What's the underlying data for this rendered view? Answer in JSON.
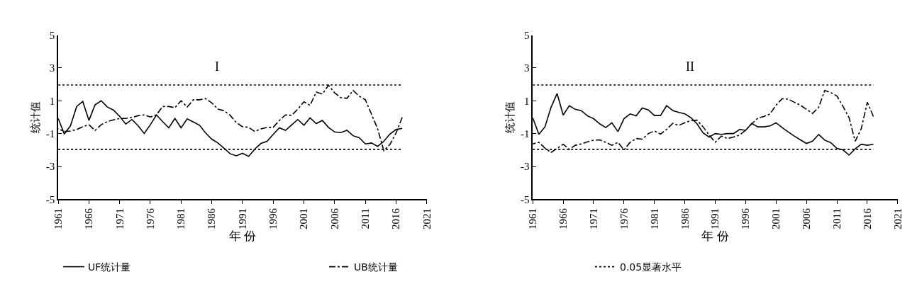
{
  "chart_data": [
    {
      "type": "line",
      "title": "I",
      "xlabel": "年 份",
      "ylabel": "统计值",
      "xlim": [
        1961,
        2021
      ],
      "xticks": [
        1961,
        1966,
        1971,
        1976,
        1981,
        1986,
        1991,
        1996,
        2001,
        2006,
        2011,
        2016,
        2021
      ],
      "ylim": [
        -5,
        5
      ],
      "yticks": [
        -5,
        -3,
        -1,
        1,
        3,
        5
      ],
      "legend": "bottom",
      "marker": "none",
      "x": [
        1961,
        1962,
        1963,
        1964,
        1965,
        1966,
        1967,
        1968,
        1969,
        1970,
        1971,
        1972,
        1973,
        1974,
        1975,
        1976,
        1977,
        1978,
        1979,
        1980,
        1981,
        1982,
        1983,
        1984,
        1985,
        1986,
        1987,
        1988,
        1989,
        1990,
        1991,
        1992,
        1993,
        1994,
        1995,
        1996,
        1997,
        1998,
        1999,
        2000,
        2001,
        2002,
        2003,
        2004,
        2005,
        2006,
        2007,
        2008,
        2009,
        2010,
        2011,
        2012,
        2013,
        2014,
        2015,
        2016,
        2017
      ],
      "series": [
        {
          "name": "UF统计量",
          "color": "#000000",
          "line_style": "solid",
          "values": [
            -0.08,
            -1.03,
            -0.52,
            0.65,
            0.96,
            -0.2,
            0.75,
            1.0,
            0.62,
            0.43,
            0.05,
            -0.42,
            -0.14,
            -0.52,
            -0.99,
            -0.46,
            0.14,
            -0.27,
            -0.65,
            -0.08,
            -0.65,
            -0.1,
            -0.29,
            -0.49,
            -0.96,
            -1.34,
            -1.57,
            -1.89,
            -2.23,
            -2.35,
            -2.2,
            -2.39,
            -1.94,
            -1.6,
            -1.47,
            -1.05,
            -0.65,
            -0.8,
            -0.47,
            -0.14,
            -0.49,
            -0.04,
            -0.39,
            -0.2,
            -0.62,
            -0.9,
            -0.94,
            -0.8,
            -1.13,
            -1.25,
            -1.63,
            -1.57,
            -1.78,
            -1.47,
            -1.03,
            -0.75,
            -0.68
          ]
        },
        {
          "name": "UB统计量",
          "color": "#000000",
          "line_style": "dashdot",
          "values": [
            -0.7,
            -0.87,
            -0.84,
            -0.75,
            -0.58,
            -0.46,
            -0.81,
            -0.46,
            -0.27,
            -0.16,
            -0.08,
            -0.08,
            -0.01,
            0.09,
            0.14,
            0.01,
            0.14,
            0.65,
            0.65,
            0.58,
            1.0,
            0.62,
            1.06,
            1.06,
            1.13,
            0.87,
            0.49,
            0.39,
            0.11,
            -0.33,
            -0.58,
            -0.62,
            -0.87,
            -0.71,
            -0.62,
            -0.62,
            -0.2,
            0.14,
            0.11,
            0.49,
            0.94,
            0.72,
            1.53,
            1.41,
            1.95,
            1.48,
            1.19,
            1.15,
            1.63,
            1.28,
            1.06,
            0.18,
            -0.71,
            -2.04,
            -1.66,
            -0.96,
            -0.01
          ]
        }
      ],
      "ref_lines": [
        {
          "axis": "y",
          "value": 1.96,
          "label": "0.05显著水平",
          "color": "#000000",
          "line_style": "dotted"
        },
        {
          "axis": "y",
          "value": -1.96,
          "color": "#000000",
          "line_style": "dotted"
        }
      ]
    },
    {
      "type": "line",
      "title": "II",
      "xlabel": "年 份",
      "ylabel": "统计值",
      "xlim": [
        1961,
        2021
      ],
      "xticks": [
        1961,
        1966,
        1971,
        1976,
        1981,
        1986,
        1991,
        1996,
        2001,
        2006,
        2011,
        2016,
        2021
      ],
      "ylim": [
        -5,
        5
      ],
      "yticks": [
        -5,
        -3,
        -1,
        1,
        3,
        5
      ],
      "marker": "none",
      "x": [
        1961,
        1962,
        1963,
        1964,
        1965,
        1966,
        1967,
        1968,
        1969,
        1970,
        1971,
        1972,
        1973,
        1974,
        1975,
        1976,
        1977,
        1978,
        1979,
        1980,
        1981,
        1982,
        1983,
        1984,
        1985,
        1986,
        1987,
        1988,
        1989,
        1990,
        1991,
        1992,
        1993,
        1994,
        1995,
        1996,
        1997,
        1998,
        1999,
        2000,
        2001,
        2002,
        2003,
        2004,
        2005,
        2006,
        2007,
        2008,
        2009,
        2010,
        2011,
        2012,
        2013,
        2014,
        2015,
        2016,
        2017
      ],
      "series": [
        {
          "color": "#000000",
          "line_style": "solid",
          "values": [
            -0.03,
            -1.05,
            -0.59,
            0.6,
            1.44,
            0.13,
            0.7,
            0.48,
            0.39,
            0.08,
            -0.09,
            -0.4,
            -0.63,
            -0.34,
            -0.88,
            -0.09,
            0.2,
            0.08,
            0.56,
            0.44,
            0.1,
            0.1,
            0.7,
            0.41,
            0.29,
            0.2,
            -0.03,
            -0.4,
            -0.96,
            -1.21,
            -1.0,
            -1.05,
            -1.0,
            -1.0,
            -0.75,
            -0.8,
            -0.38,
            -0.59,
            -0.59,
            -0.53,
            -0.34,
            -0.63,
            -0.9,
            -1.15,
            -1.38,
            -1.6,
            -1.46,
            -1.05,
            -1.4,
            -1.55,
            -1.9,
            -1.99,
            -2.31,
            -1.93,
            -1.65,
            -1.71,
            -1.65
          ]
        },
        {
          "color": "#000000",
          "line_style": "dashdot",
          "values": [
            -1.63,
            -1.53,
            -1.88,
            -2.15,
            -1.9,
            -1.65,
            -1.96,
            -1.71,
            -1.63,
            -1.5,
            -1.4,
            -1.38,
            -1.53,
            -1.71,
            -1.53,
            -2.0,
            -1.53,
            -1.3,
            -1.34,
            -1.0,
            -0.84,
            -1.03,
            -0.75,
            -0.38,
            -0.5,
            -0.34,
            -0.21,
            -0.18,
            -0.59,
            -1.09,
            -1.53,
            -1.15,
            -1.3,
            -1.21,
            -1.09,
            -0.8,
            -0.4,
            -0.06,
            0.04,
            0.2,
            0.73,
            1.13,
            1.1,
            0.91,
            0.73,
            0.48,
            0.23,
            0.6,
            1.63,
            1.5,
            1.29,
            0.66,
            -0.03,
            -1.46,
            -0.71,
            0.91,
            0.04
          ]
        }
      ],
      "ref_lines": [
        {
          "axis": "y",
          "value": 1.96,
          "color": "#000000",
          "line_style": "dotted"
        },
        {
          "axis": "y",
          "value": -1.96,
          "color": "#000000",
          "line_style": "dotted"
        }
      ]
    }
  ]
}
